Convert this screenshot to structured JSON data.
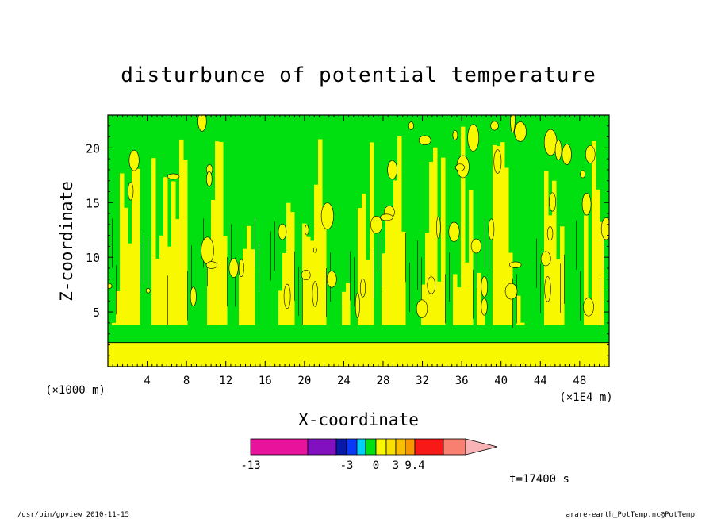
{
  "chart_data": {
    "type": "heatmap",
    "title": "disturbunce of potential temperature",
    "xlabel": "X-coordinate",
    "ylabel": "Z-coordinate",
    "x_unit": "(×1E4 m)",
    "y_unit": "(×1000 m)",
    "xlim": [
      0,
      51
    ],
    "ylim": [
      0,
      23
    ],
    "x_ticks": [
      4,
      8,
      12,
      16,
      20,
      24,
      28,
      32,
      36,
      40,
      44,
      48
    ],
    "y_ticks": [
      5,
      10,
      15,
      20
    ],
    "plumes_x": [
      2,
      5,
      7,
      11,
      14,
      18,
      21,
      26,
      29,
      33,
      36,
      40,
      45,
      49
    ],
    "colorbar": {
      "colors": [
        "#e8129c",
        "#8010c0",
        "#0818a8",
        "#0838f8",
        "#00d0f8",
        "#00e010",
        "#f8f800",
        "#f8e000",
        "#f8c000",
        "#f89800",
        "#f81818",
        "#f88070",
        "#f8b4b4"
      ],
      "tick_labels": [
        "-13",
        "-3",
        "0",
        "3",
        "9.4"
      ],
      "tick_boundaries": [
        0,
        3,
        6,
        8,
        10
      ]
    },
    "time_label": "t=17400 s"
  },
  "footer": {
    "left": "/usr/bin/gpview  2010-11-15",
    "right": "arare-earth_PotTemp.nc@PotTemp"
  }
}
